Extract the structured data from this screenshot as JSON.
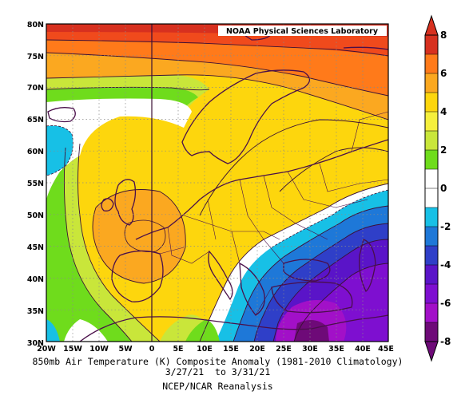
{
  "figure": {
    "credit": "NOAA Physical Sciences Laboratory",
    "title_line1": "850mb Air Temperature (K) Composite Anomaly (1981-2010 Climatology)",
    "title_line2": "3/27/21  to 3/31/21",
    "title_line3": "NCEP/NCAR Reanalysis"
  },
  "axes": {
    "lon_labels": [
      "20W",
      "15W",
      "10W",
      "5W",
      "0",
      "5E",
      "10E",
      "15E",
      "20E",
      "25E",
      "30E",
      "35E",
      "40E",
      "45E"
    ],
    "lat_labels": [
      "30N",
      "35N",
      "40N",
      "45N",
      "50N",
      "55N",
      "60N",
      "65N",
      "70N",
      "75N",
      "80N"
    ]
  },
  "colorbar": {
    "tick_labels": [
      "8",
      "6",
      "4",
      "2",
      "0",
      "-2",
      "-4",
      "-6",
      "-8"
    ],
    "colors": [
      "#d7301f",
      "#ff7a1a",
      "#fba820",
      "#fdd60d",
      "#f5ef3c",
      "#c9e63a",
      "#6fdc1c",
      "#ffffff",
      "#ffffff",
      "#17c0e6",
      "#1e78d8",
      "#2f3fc8",
      "#5a14c8",
      "#7e0fd0",
      "#a210c8",
      "#6e0a78"
    ],
    "extend_top_color": "#d7301f",
    "extend_bottom_color": "#6e0a78"
  }
}
